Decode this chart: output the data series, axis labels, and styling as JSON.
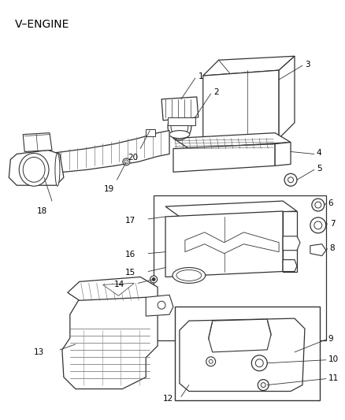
{
  "title": "V–ENGINE",
  "background_color": "#ffffff",
  "line_color": "#333333",
  "fig_width": 4.38,
  "fig_height": 5.33,
  "dpi": 100,
  "label_fontsize": 7.5,
  "title_fontsize": 10
}
